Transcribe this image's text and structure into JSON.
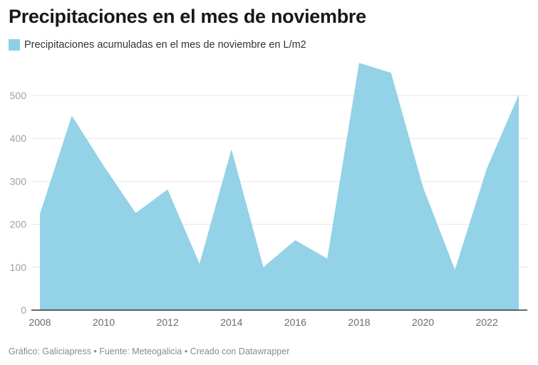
{
  "header": {
    "title": "Precipitaciones en el mes de noviembre"
  },
  "legend": {
    "label": "Precipitaciones acumuladas en el mes de noviembre en L/m2",
    "color": "#8dd0e6"
  },
  "footer": {
    "text": "Gráfico: Galiciapress • Fuente: Meteogalicia • Creado con Datawrapper"
  },
  "chart_data": {
    "type": "area",
    "title": "Precipitaciones en el mes de noviembre",
    "xlabel": "",
    "ylabel": "",
    "x": [
      2008,
      2009,
      2010,
      2011,
      2012,
      2013,
      2014,
      2015,
      2016,
      2017,
      2018,
      2019,
      2020,
      2021,
      2022,
      2023
    ],
    "series": [
      {
        "name": "Precipitaciones acumuladas en el mes de noviembre en L/m2",
        "color": "#8dd0e6",
        "values": [
          224,
          453,
          336,
          226,
          281,
          108,
          375,
          100,
          163,
          120,
          576,
          553,
          287,
          94,
          330,
          502
        ]
      }
    ],
    "xticks": [
      "2008",
      "2010",
      "2012",
      "2014",
      "2016",
      "2018",
      "2020",
      "2022"
    ],
    "yticks": [
      "0",
      "100",
      "200",
      "300",
      "400",
      "500"
    ],
    "ylim": [
      0,
      580
    ],
    "grid": true,
    "legend_position": "top-left"
  }
}
